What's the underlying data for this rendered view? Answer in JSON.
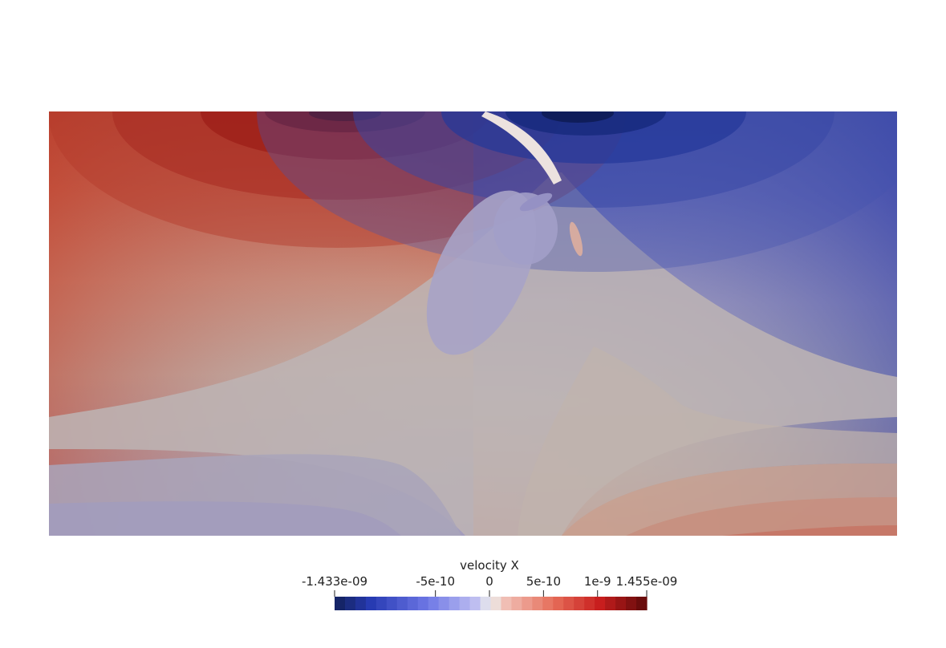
{
  "colorbar": {
    "title": "velocity X",
    "min_label": "-1.433e-09",
    "max_label": "1.455e-09",
    "min": -1.433e-09,
    "max": 1.455e-09,
    "ticks": [
      {
        "value": -5e-10,
        "label": "-5e-10"
      },
      {
        "value": 0,
        "label": "0"
      },
      {
        "value": 5e-10,
        "label": "5e-10"
      },
      {
        "value": 1e-09,
        "label": "1e-9"
      }
    ],
    "band_count": 30,
    "colormap": "cool-to-warm",
    "colors": {
      "low": "#12205a",
      "mid_low": "#3b4cc0",
      "neutral": "#dddddd",
      "mid_high": "#e0503c",
      "high": "#5e0a0a"
    }
  }
}
